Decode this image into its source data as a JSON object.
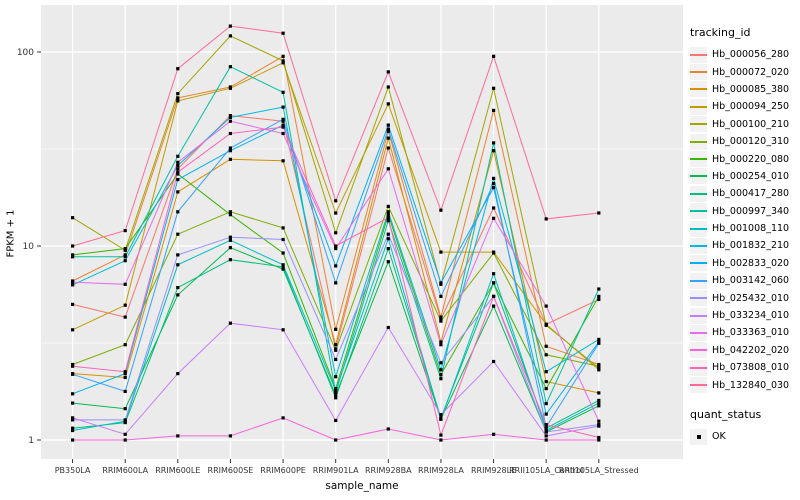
{
  "chart_data": {
    "type": "line",
    "title": "",
    "xlabel": "sample_name",
    "ylabel": "FPKM + 1",
    "y_scale": "log10",
    "y_ticks": [
      1,
      10,
      100
    ],
    "y_minor_ticks": [
      3.162,
      31.62
    ],
    "ylim": [
      0.78,
      175
    ],
    "grid": true,
    "panel_bg": "#ebebeb",
    "grid_color": "#ffffff",
    "point_color": "#000000",
    "axis_text_color": "#333333",
    "legend_position": "right",
    "categories": [
      "PB350LA",
      "RRIM600LA",
      "RRIM600LE",
      "RRIM600SE",
      "RRIM600PE",
      "RRIM901LA",
      "RRIM928BA",
      "RRIM928LA",
      "RRIM928LE",
      "RRII105LA_Control",
      "RRII105LA_Stressed"
    ],
    "legend": {
      "color_title": "tracking_id",
      "shape_title": "quant_status",
      "shape_items": [
        {
          "label": "OK"
        }
      ]
    },
    "series": [
      {
        "name": "Hb_000056_280",
        "color": "#F8766D",
        "values": [
          5.0,
          4.3,
          25,
          47,
          44,
          2.95,
          32,
          4.2,
          15.7,
          3.95,
          5.3
        ]
      },
      {
        "name": "Hb_000072_020",
        "color": "#EA8331",
        "values": [
          6.6,
          9.0,
          58,
          66,
          95,
          3.72,
          39,
          4.3,
          50,
          3.04,
          2.45
        ]
      },
      {
        "name": "Hb_000085_380",
        "color": "#D89000",
        "values": [
          2.2,
          2.1,
          19,
          28,
          27.5,
          3.1,
          36,
          3.2,
          31,
          2.0,
          1.75
        ]
      },
      {
        "name": "Hb_000094_250",
        "color": "#C09B00",
        "values": [
          3.7,
          4.95,
          56,
          65,
          88,
          14.8,
          54,
          9.3,
          9.3,
          3.95,
          2.3
        ]
      },
      {
        "name": "Hb_000100_210",
        "color": "#A3A500",
        "values": [
          14,
          9.5,
          61,
          121,
          90,
          11.7,
          66,
          6.35,
          65,
          3.9,
          2.35
        ]
      },
      {
        "name": "Hb_000120_310",
        "color": "#7CAE00",
        "values": [
          2.45,
          3.1,
          11.5,
          15,
          12.4,
          2.9,
          16,
          4.1,
          9.2,
          2.75,
          2.4
        ]
      },
      {
        "name": "Hb_000220_080",
        "color": "#39B600",
        "values": [
          9.0,
          9.7,
          23.5,
          14.5,
          9.2,
          1.84,
          14.5,
          2.17,
          6.45,
          1.84,
          5.5
        ]
      },
      {
        "name": "Hb_000254_010",
        "color": "#00BB4E",
        "values": [
          1.55,
          1.45,
          5.6,
          9.8,
          7.6,
          1.7,
          8.3,
          1.28,
          4.9,
          1.1,
          1.5
        ]
      },
      {
        "name": "Hb_000417_280",
        "color": "#00BF7D",
        "values": [
          1.15,
          1.23,
          6.1,
          8.5,
          7.8,
          1.65,
          9.7,
          1.3,
          6.45,
          1.15,
          1.6
        ]
      },
      {
        "name": "Hb_000997_340",
        "color": "#00C1A3",
        "values": [
          8.8,
          8.8,
          29,
          84,
          62,
          1.75,
          13.5,
          2.07,
          34,
          1.54,
          6.0
        ]
      },
      {
        "name": "Hb_001008_110",
        "color": "#00BFC4",
        "values": [
          1.12,
          1.25,
          8.0,
          10.7,
          8.0,
          1.8,
          10.9,
          1.28,
          7.2,
          1.12,
          1.55
        ]
      },
      {
        "name": "Hb_001832_210",
        "color": "#00BAE0",
        "values": [
          6.3,
          8.4,
          26,
          46,
          52,
          2.12,
          15,
          2.3,
          22.3,
          2.25,
          3.3
        ]
      },
      {
        "name": "Hb_002833_020",
        "color": "#00B0F6",
        "values": [
          1.73,
          2.2,
          22,
          31,
          42,
          7.9,
          42,
          6.45,
          20,
          1.36,
          3.2
        ]
      },
      {
        "name": "Hb_003142_060",
        "color": "#35A2FF",
        "values": [
          2.18,
          1.78,
          15,
          32,
          45,
          6.45,
          40,
          5.5,
          21,
          1.17,
          3.15
        ]
      },
      {
        "name": "Hb_025432_010",
        "color": "#9590FF",
        "values": [
          1.27,
          1.27,
          9.0,
          11.1,
          10.8,
          2.6,
          11.5,
          2.5,
          5.5,
          1.1,
          1.2
        ]
      },
      {
        "name": "Hb_033234_010",
        "color": "#C77CFF",
        "values": [
          1.3,
          1.07,
          2.2,
          4.0,
          3.7,
          1.26,
          3.8,
          1.35,
          2.54,
          1.05,
          1.18
        ]
      },
      {
        "name": "Hb_033363_010",
        "color": "#E76BF3",
        "values": [
          6.5,
          6.35,
          27,
          44,
          38,
          9.7,
          25,
          3.1,
          13.9,
          4.9,
          1.25
        ]
      },
      {
        "name": "Hb_042202_020",
        "color": "#FA62DB",
        "values": [
          1.0,
          1.0,
          1.05,
          1.05,
          1.3,
          1.0,
          1.14,
          1.0,
          1.07,
          1.0,
          1.0
        ]
      },
      {
        "name": "Hb_073808_010",
        "color": "#FF62BC",
        "values": [
          2.4,
          2.25,
          24,
          38,
          41,
          10.0,
          14,
          1.06,
          5.5,
          1.2,
          1.03
        ]
      },
      {
        "name": "Hb_132840_030",
        "color": "#FF6A98",
        "values": [
          10,
          12,
          82,
          136,
          125,
          17.1,
          79,
          15.3,
          95,
          13.8,
          14.8
        ]
      }
    ]
  }
}
